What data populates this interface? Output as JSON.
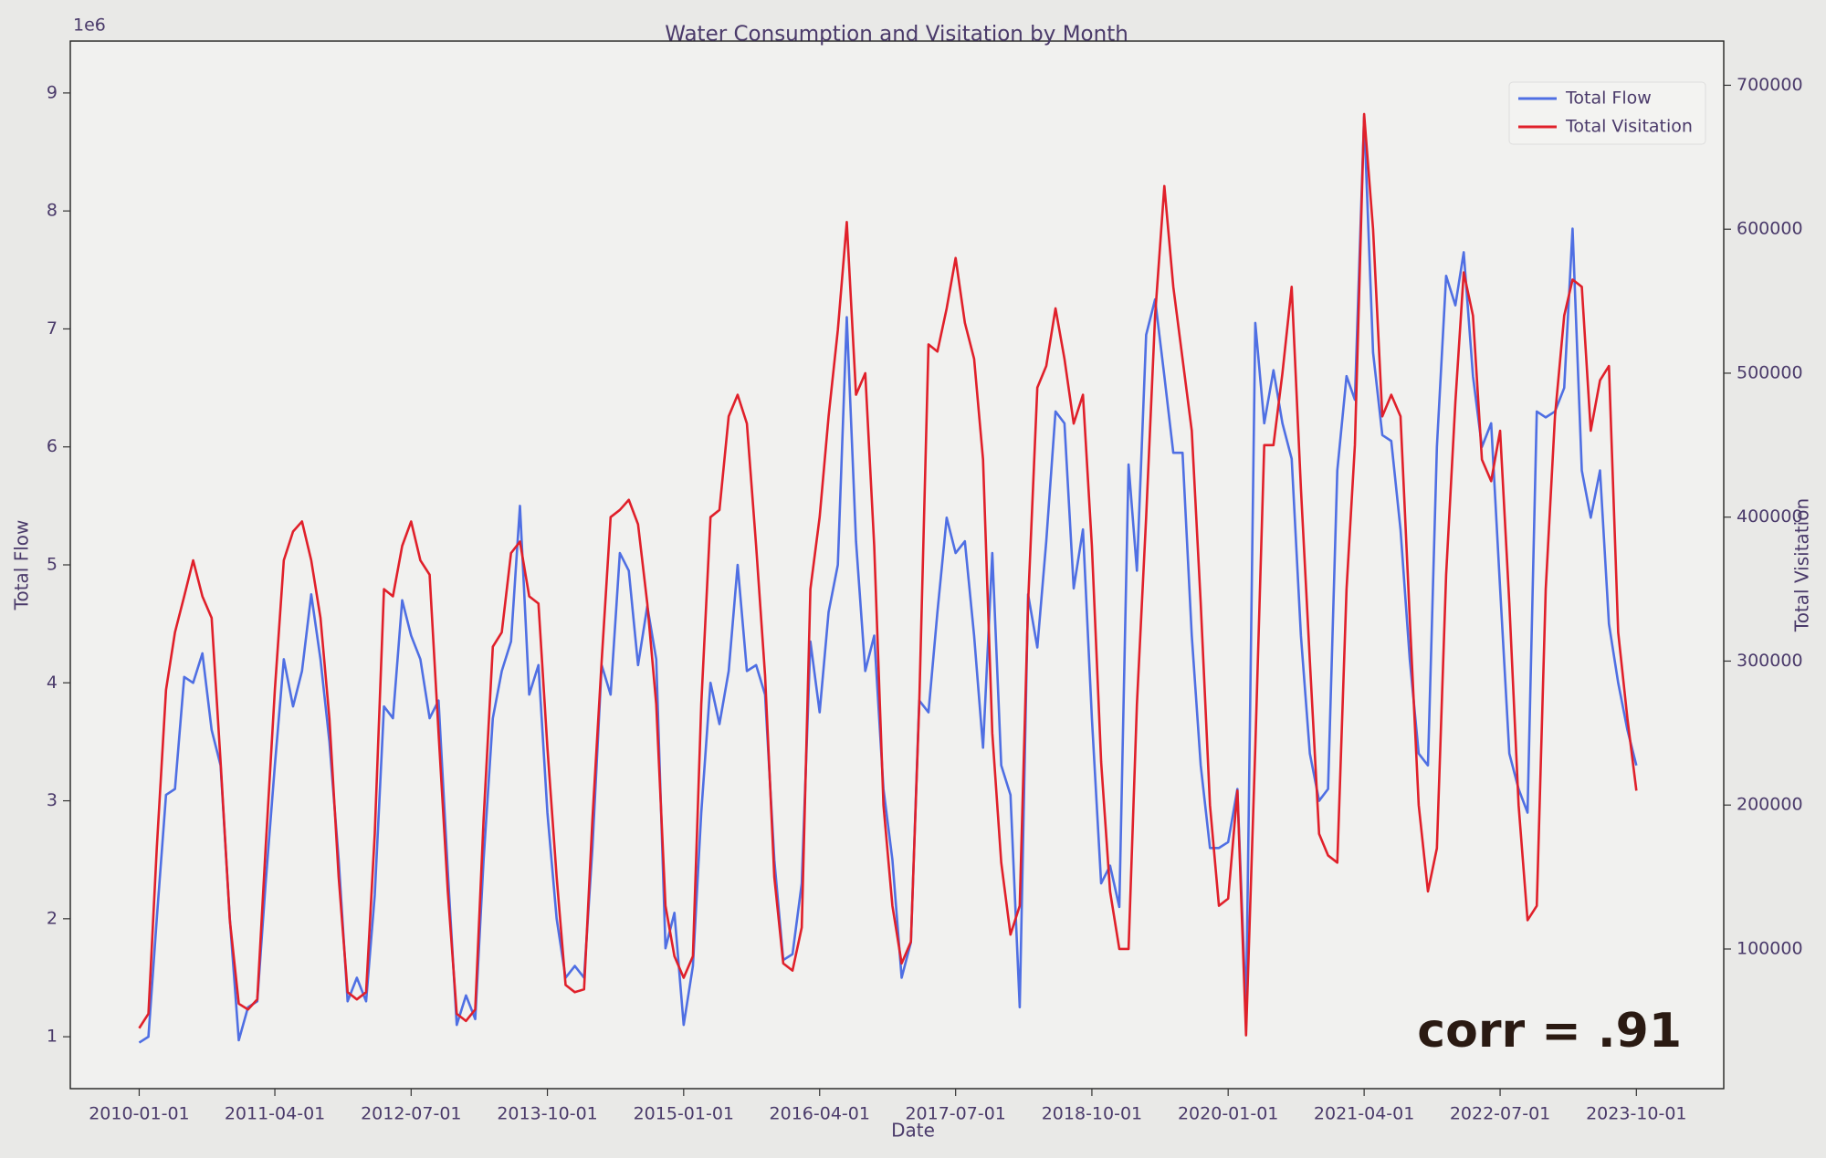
{
  "chart_data": {
    "type": "line",
    "title": "Water Consumption and Visitation by Month",
    "xlabel": "Date",
    "ylabel": "Total Flow",
    "y2label": "Total Visitation",
    "y_offset_label": "1e6",
    "annotation": "corr = .91",
    "legend": "upper right",
    "x": [
      "2010-01-01",
      "2010-02-01",
      "2010-03-01",
      "2010-04-01",
      "2010-05-01",
      "2010-06-01",
      "2010-07-01",
      "2010-08-01",
      "2010-09-01",
      "2010-10-01",
      "2010-11-01",
      "2010-12-01",
      "2011-01-01",
      "2011-02-01",
      "2011-03-01",
      "2011-04-01",
      "2011-05-01",
      "2011-06-01",
      "2011-07-01",
      "2011-08-01",
      "2011-09-01",
      "2011-10-01",
      "2011-11-01",
      "2011-12-01",
      "2012-01-01",
      "2012-02-01",
      "2012-03-01",
      "2012-04-01",
      "2012-05-01",
      "2012-06-01",
      "2012-07-01",
      "2012-08-01",
      "2012-09-01",
      "2012-10-01",
      "2012-11-01",
      "2012-12-01",
      "2013-01-01",
      "2013-02-01",
      "2013-03-01",
      "2013-04-01",
      "2013-05-01",
      "2013-06-01",
      "2013-07-01",
      "2013-08-01",
      "2013-09-01",
      "2013-10-01",
      "2013-11-01",
      "2013-12-01",
      "2014-01-01",
      "2014-02-01",
      "2014-03-01",
      "2014-04-01",
      "2014-05-01",
      "2014-06-01",
      "2014-07-01",
      "2014-08-01",
      "2014-09-01",
      "2014-10-01",
      "2014-11-01",
      "2014-12-01",
      "2015-01-01",
      "2015-02-01",
      "2015-03-01",
      "2015-04-01",
      "2015-05-01",
      "2015-06-01",
      "2015-07-01",
      "2015-08-01",
      "2015-09-01",
      "2015-10-01",
      "2015-11-01",
      "2015-12-01",
      "2016-01-01",
      "2016-02-01",
      "2016-03-01",
      "2016-04-01",
      "2016-05-01",
      "2016-06-01",
      "2016-07-01",
      "2016-08-01",
      "2016-09-01",
      "2016-10-01",
      "2016-11-01",
      "2016-12-01",
      "2017-01-01",
      "2017-02-01",
      "2017-03-01",
      "2017-04-01",
      "2017-05-01",
      "2017-06-01",
      "2017-07-01",
      "2017-08-01",
      "2017-09-01",
      "2017-10-01",
      "2017-11-01",
      "2017-12-01",
      "2018-01-01",
      "2018-02-01",
      "2018-03-01",
      "2018-04-01",
      "2018-05-01",
      "2018-06-01",
      "2018-07-01",
      "2018-08-01",
      "2018-09-01",
      "2018-10-01",
      "2018-11-01",
      "2018-12-01",
      "2019-01-01",
      "2019-02-01",
      "2019-03-01",
      "2019-04-01",
      "2019-05-01",
      "2019-06-01",
      "2019-07-01",
      "2019-08-01",
      "2019-09-01",
      "2019-10-01",
      "2019-11-01",
      "2019-12-01",
      "2020-01-01",
      "2020-02-01",
      "2020-03-01",
      "2020-04-01",
      "2020-05-01",
      "2020-06-01",
      "2020-07-01",
      "2020-08-01",
      "2020-09-01",
      "2020-10-01",
      "2020-11-01",
      "2020-12-01",
      "2021-01-01",
      "2021-02-01",
      "2021-03-01",
      "2021-04-01",
      "2021-05-01",
      "2021-06-01",
      "2021-07-01",
      "2021-08-01",
      "2021-09-01",
      "2021-10-01",
      "2021-11-01",
      "2021-12-01",
      "2022-01-01",
      "2022-02-01",
      "2022-03-01",
      "2022-04-01",
      "2022-05-01",
      "2022-06-01",
      "2022-07-01",
      "2022-08-01",
      "2022-09-01",
      "2022-10-01",
      "2022-11-01",
      "2022-12-01",
      "2023-01-01",
      "2023-02-01",
      "2023-03-01",
      "2023-04-01",
      "2023-05-01",
      "2023-06-01",
      "2023-07-01",
      "2023-08-01",
      "2023-09-01",
      "2023-10-01"
    ],
    "series": [
      {
        "name": "Total Flow",
        "color": "#4f6fe3",
        "axis": "y",
        "values": [
          0.95,
          1.0,
          2.0,
          3.05,
          3.1,
          4.05,
          4.0,
          4.25,
          3.6,
          3.3,
          2.0,
          0.97,
          1.25,
          1.3,
          2.3,
          3.3,
          4.2,
          3.8,
          4.1,
          4.75,
          4.2,
          3.5,
          2.5,
          1.3,
          1.5,
          1.3,
          2.2,
          3.8,
          3.7,
          4.7,
          4.4,
          4.2,
          3.7,
          3.85,
          2.4,
          1.1,
          1.35,
          1.15,
          2.5,
          3.7,
          4.1,
          4.35,
          5.5,
          3.9,
          4.15,
          2.9,
          2.0,
          1.5,
          1.6,
          1.5,
          2.6,
          4.15,
          3.9,
          5.1,
          4.95,
          4.15,
          4.65,
          4.2,
          1.75,
          2.05,
          1.1,
          1.6,
          2.9,
          4.0,
          3.65,
          4.1,
          5.0,
          4.1,
          4.15,
          3.9,
          2.5,
          1.65,
          1.7,
          2.3,
          4.35,
          3.75,
          4.6,
          5.0,
          7.1,
          5.2,
          4.1,
          4.4,
          3.1,
          2.5,
          1.5,
          1.8,
          3.85,
          3.75,
          4.6,
          5.4,
          5.1,
          5.2,
          4.4,
          3.45,
          5.1,
          3.3,
          3.05,
          1.25,
          4.75,
          4.3,
          5.2,
          6.3,
          6.2,
          4.8,
          5.3,
          3.7,
          2.3,
          2.45,
          2.1,
          5.85,
          4.95,
          6.95,
          7.25,
          6.6,
          5.95,
          5.95,
          4.4,
          3.3,
          2.6,
          2.6,
          2.65,
          3.1,
          1.2,
          7.05,
          6.2,
          6.65,
          6.2,
          5.9,
          4.4,
          3.4,
          3.0,
          3.1,
          5.8,
          6.6,
          6.4,
          8.8,
          6.8,
          6.1,
          6.05,
          5.3,
          4.2,
          3.4,
          3.3,
          6.0,
          7.45,
          7.2,
          7.65,
          6.6,
          6.0,
          6.2,
          4.8,
          3.4,
          3.1,
          2.9,
          6.3,
          6.25,
          6.3,
          6.5,
          7.85,
          5.8,
          5.4,
          5.8,
          4.5,
          4.0,
          3.6,
          3.3
        ]
      },
      {
        "name": "Total Visitation",
        "color": "#e0202a",
        "axis": "y2",
        "values": [
          45000,
          55000,
          170000,
          280000,
          320000,
          345000,
          370000,
          345000,
          330000,
          230000,
          120000,
          62000,
          58000,
          65000,
          170000,
          280000,
          370000,
          390000,
          397000,
          370000,
          330000,
          260000,
          150000,
          70000,
          65000,
          70000,
          180000,
          350000,
          345000,
          380000,
          397000,
          370000,
          360000,
          250000,
          140000,
          55000,
          50000,
          58000,
          190000,
          310000,
          320000,
          375000,
          383000,
          345000,
          340000,
          240000,
          150000,
          75000,
          70000,
          72000,
          190000,
          300000,
          400000,
          405000,
          412000,
          395000,
          340000,
          270000,
          130000,
          95000,
          80000,
          95000,
          270000,
          400000,
          405000,
          470000,
          485000,
          465000,
          380000,
          290000,
          150000,
          90000,
          85000,
          115000,
          350000,
          400000,
          470000,
          530000,
          605000,
          485000,
          500000,
          380000,
          200000,
          130000,
          90000,
          105000,
          270000,
          520000,
          515000,
          545000,
          580000,
          535000,
          510000,
          440000,
          250000,
          160000,
          110000,
          130000,
          340000,
          490000,
          505000,
          545000,
          510000,
          465000,
          485000,
          380000,
          230000,
          140000,
          100000,
          100000,
          270000,
          400000,
          540000,
          630000,
          560000,
          510000,
          460000,
          340000,
          200000,
          130000,
          135000,
          210000,
          40000,
          240000,
          450000,
          450000,
          500000,
          560000,
          420000,
          300000,
          180000,
          165000,
          160000,
          350000,
          450000,
          680000,
          600000,
          470000,
          485000,
          470000,
          330000,
          200000,
          140000,
          170000,
          360000,
          480000,
          570000,
          540000,
          440000,
          425000,
          460000,
          340000,
          200000,
          120000,
          130000,
          350000,
          470000,
          540000,
          565000,
          560000,
          460000,
          495000,
          505000,
          320000,
          260000,
          210000
        ]
      }
    ],
    "xlim": [
      "2009-05-15",
      "2024-07-20"
    ],
    "xticks": [
      "2010-01-01",
      "2011-04-01",
      "2012-07-01",
      "2013-10-01",
      "2015-01-01",
      "2016-04-01",
      "2017-07-01",
      "2018-10-01",
      "2020-01-01",
      "2021-04-01",
      "2022-07-01",
      "2023-10-01"
    ],
    "ylim": [
      0.56,
      9.44
    ],
    "yticks": [
      1,
      2,
      3,
      4,
      5,
      6,
      7,
      8,
      9
    ],
    "y2lim": [
      3000,
      730700
    ],
    "y2ticks": [
      100000,
      200000,
      300000,
      400000,
      500000,
      600000,
      700000
    ]
  }
}
